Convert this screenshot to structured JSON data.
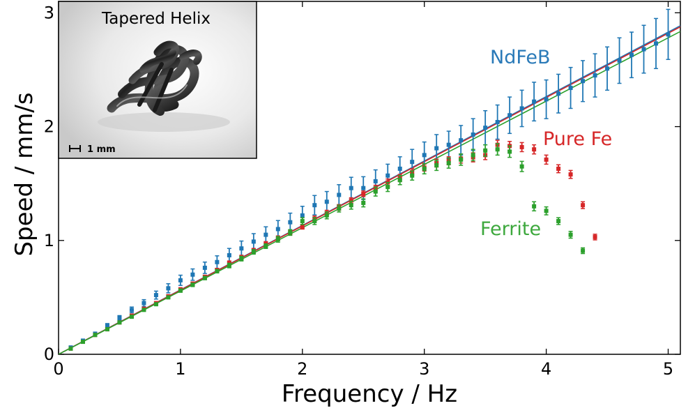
{
  "chart_data": {
    "type": "scatter",
    "xlabel": "Frequency / Hz",
    "ylabel": "Speed / mm/s",
    "xlim": [
      0,
      5.1
    ],
    "ylim": [
      0,
      3.1
    ],
    "x_ticks": [
      "0",
      "1",
      "2",
      "3",
      "4",
      "5"
    ],
    "y_ticks": [
      "0",
      "1",
      "2",
      "3"
    ],
    "grid": false,
    "series": [
      {
        "name": "NdFeB",
        "color": "#1f77b4",
        "label_color": "#2a7ab8",
        "fit_slope": 0.566,
        "x": [
          0.1,
          0.2,
          0.3,
          0.4,
          0.5,
          0.6,
          0.7,
          0.8,
          0.9,
          1.0,
          1.1,
          1.2,
          1.3,
          1.4,
          1.5,
          1.6,
          1.7,
          1.8,
          1.9,
          2.0,
          2.1,
          2.2,
          2.3,
          2.4,
          2.5,
          2.6,
          2.7,
          2.8,
          2.9,
          3.0,
          3.1,
          3.2,
          3.3,
          3.4,
          3.5,
          3.6,
          3.7,
          3.8,
          3.9,
          4.0,
          4.1,
          4.2,
          4.3,
          4.4,
          4.5,
          4.6,
          4.7,
          4.8,
          4.9,
          5.0
        ],
        "y": [
          0.06,
          0.12,
          0.18,
          0.25,
          0.32,
          0.39,
          0.45,
          0.52,
          0.58,
          0.65,
          0.7,
          0.76,
          0.81,
          0.87,
          0.93,
          0.99,
          1.05,
          1.1,
          1.16,
          1.22,
          1.31,
          1.34,
          1.4,
          1.46,
          1.46,
          1.52,
          1.57,
          1.63,
          1.69,
          1.75,
          1.81,
          1.84,
          1.88,
          1.93,
          1.99,
          2.04,
          2.1,
          2.16,
          2.22,
          2.24,
          2.29,
          2.34,
          2.4,
          2.45,
          2.51,
          2.58,
          2.63,
          2.68,
          2.73,
          2.81
        ],
        "err": [
          0.01,
          0.01,
          0.015,
          0.02,
          0.02,
          0.025,
          0.03,
          0.035,
          0.04,
          0.045,
          0.05,
          0.05,
          0.055,
          0.06,
          0.065,
          0.07,
          0.07,
          0.075,
          0.08,
          0.08,
          0.085,
          0.09,
          0.09,
          0.095,
          0.1,
          0.1,
          0.1,
          0.105,
          0.11,
          0.115,
          0.12,
          0.12,
          0.13,
          0.14,
          0.15,
          0.15,
          0.16,
          0.16,
          0.17,
          0.17,
          0.17,
          0.18,
          0.18,
          0.19,
          0.19,
          0.2,
          0.2,
          0.21,
          0.22,
          0.22
        ]
      },
      {
        "name": "Pure Fe",
        "color": "#d62728",
        "label_color": "#d62728",
        "fit_slope": 0.564,
        "x": [
          0.1,
          0.2,
          0.3,
          0.4,
          0.5,
          0.6,
          0.7,
          0.8,
          0.9,
          1.0,
          1.1,
          1.2,
          1.3,
          1.4,
          1.5,
          1.6,
          1.7,
          1.8,
          1.9,
          2.0,
          2.1,
          2.2,
          2.3,
          2.4,
          2.5,
          2.6,
          2.7,
          2.8,
          2.9,
          3.0,
          3.1,
          3.2,
          3.3,
          3.4,
          3.5,
          3.6,
          3.7,
          3.8,
          3.9,
          4.0,
          4.1,
          4.2,
          4.3,
          4.4
        ],
        "y": [
          0.05,
          0.11,
          0.17,
          0.22,
          0.28,
          0.34,
          0.4,
          0.45,
          0.51,
          0.57,
          0.62,
          0.68,
          0.74,
          0.8,
          0.85,
          0.91,
          0.97,
          1.02,
          1.07,
          1.12,
          1.19,
          1.24,
          1.29,
          1.35,
          1.41,
          1.46,
          1.51,
          1.55,
          1.6,
          1.64,
          1.68,
          1.7,
          1.72,
          1.73,
          1.75,
          1.84,
          1.83,
          1.82,
          1.8,
          1.71,
          1.63,
          1.58,
          1.31,
          1.03
        ],
        "err": [
          0.01,
          0.01,
          0.01,
          0.01,
          0.01,
          0.01,
          0.01,
          0.01,
          0.01,
          0.015,
          0.015,
          0.015,
          0.015,
          0.02,
          0.02,
          0.02,
          0.02,
          0.02,
          0.02,
          0.02,
          0.025,
          0.025,
          0.025,
          0.025,
          0.025,
          0.025,
          0.03,
          0.03,
          0.03,
          0.03,
          0.035,
          0.035,
          0.04,
          0.04,
          0.04,
          0.04,
          0.04,
          0.04,
          0.04,
          0.04,
          0.035,
          0.035,
          0.03,
          0.025
        ]
      },
      {
        "name": "Ferrite",
        "color": "#2ca02c",
        "label_color": "#3da83d",
        "fit_slope": 0.556,
        "x": [
          0.1,
          0.2,
          0.3,
          0.4,
          0.5,
          0.6,
          0.7,
          0.8,
          0.9,
          1.0,
          1.1,
          1.2,
          1.3,
          1.4,
          1.5,
          1.6,
          1.7,
          1.8,
          1.9,
          2.0,
          2.1,
          2.2,
          2.3,
          2.4,
          2.5,
          2.6,
          2.7,
          2.8,
          2.9,
          3.0,
          3.1,
          3.2,
          3.3,
          3.4,
          3.5,
          3.6,
          3.7,
          3.8,
          3.9,
          4.0,
          4.1,
          4.2,
          4.3
        ],
        "y": [
          0.05,
          0.11,
          0.17,
          0.22,
          0.28,
          0.33,
          0.39,
          0.44,
          0.5,
          0.56,
          0.61,
          0.67,
          0.73,
          0.78,
          0.84,
          0.9,
          0.95,
          1.01,
          1.07,
          1.17,
          1.17,
          1.22,
          1.28,
          1.31,
          1.33,
          1.43,
          1.47,
          1.53,
          1.57,
          1.63,
          1.66,
          1.68,
          1.71,
          1.75,
          1.79,
          1.8,
          1.78,
          1.65,
          1.3,
          1.26,
          1.17,
          1.05,
          0.91
        ],
        "err": [
          0.01,
          0.01,
          0.01,
          0.01,
          0.01,
          0.01,
          0.01,
          0.01,
          0.01,
          0.015,
          0.015,
          0.015,
          0.015,
          0.02,
          0.02,
          0.02,
          0.02,
          0.025,
          0.025,
          0.03,
          0.03,
          0.03,
          0.03,
          0.035,
          0.035,
          0.04,
          0.04,
          0.04,
          0.04,
          0.045,
          0.045,
          0.045,
          0.05,
          0.05,
          0.05,
          0.05,
          0.05,
          0.045,
          0.04,
          0.035,
          0.03,
          0.03,
          0.025
        ]
      }
    ],
    "inset": {
      "title": "Tapered Helix",
      "scale_label": "1 mm"
    }
  },
  "colors": {
    "axis": "#000000",
    "inset_bg": "#f2f2f2"
  }
}
